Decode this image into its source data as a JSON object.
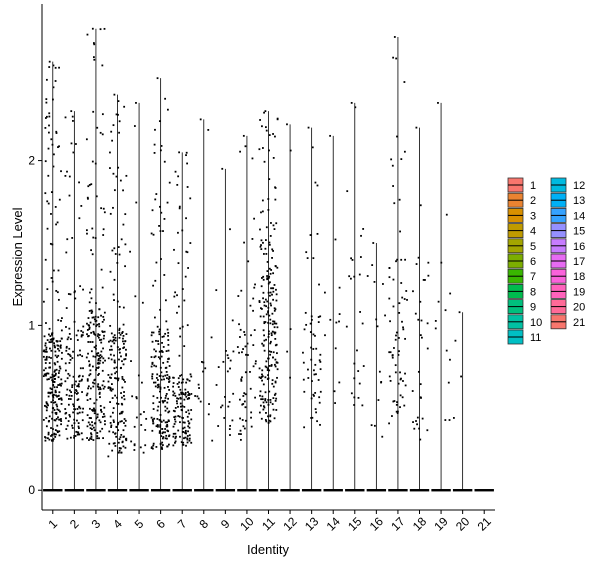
{
  "chart_data": {
    "type": "violin-jitter",
    "xlabel": "Identity",
    "ylabel": "Expression Level",
    "ylim": [
      -0.12,
      2.95
    ],
    "y_ticks": [
      0,
      1,
      2
    ],
    "legend_position": "right",
    "categories": [
      "1",
      "2",
      "3",
      "4",
      "5",
      "6",
      "7",
      "8",
      "9",
      "10",
      "11",
      "12",
      "13",
      "14",
      "15",
      "16",
      "17",
      "18",
      "19",
      "20",
      "21"
    ],
    "colors": [
      "#F8766D",
      "#EA8331",
      "#D89000",
      "#C09B00",
      "#A3A500",
      "#7CAE00",
      "#39B600",
      "#00BB4E",
      "#00BF7D",
      "#00C1A3",
      "#00BFC4",
      "#00BAE0",
      "#00B0F6",
      "#35A2FF",
      "#9590FF",
      "#C77CFF",
      "#E76BF3",
      "#FA62DB",
      "#FF62BC",
      "#FF6A98",
      "#F8766D"
    ],
    "max_expression": [
      2.6,
      2.3,
      2.8,
      2.4,
      2.35,
      2.5,
      2.05,
      2.25,
      1.95,
      2.15,
      2.3,
      2.22,
      2.2,
      2.15,
      2.35,
      1.5,
      2.75,
      2.2,
      2.35,
      1.08,
      0.0
    ],
    "nonzero_points": [
      260,
      140,
      220,
      190,
      25,
      200,
      150,
      15,
      25,
      60,
      220,
      4,
      55,
      12,
      25,
      14,
      70,
      30,
      12,
      3,
      0
    ],
    "dense_band": [
      [
        0.3,
        0.95
      ],
      [
        0.3,
        1.0
      ],
      [
        0.3,
        1.1
      ],
      [
        0.2,
        1.0
      ],
      [
        0.18,
        0.9
      ],
      [
        0.25,
        1.0
      ],
      [
        0.25,
        0.7
      ],
      [
        0.3,
        0.8
      ],
      [
        0.3,
        0.9
      ],
      [
        0.3,
        1.0
      ],
      [
        0.4,
        1.5
      ],
      [
        0.5,
        1.7
      ],
      [
        0.35,
        1.1
      ],
      [
        0.5,
        1.6
      ],
      [
        0.5,
        1.5
      ],
      [
        0.3,
        1.5
      ],
      [
        0.4,
        1.4
      ],
      [
        0.3,
        1.5
      ],
      [
        0.4,
        1.3
      ],
      [
        0.4,
        1.07
      ],
      [
        0,
        0
      ]
    ]
  }
}
